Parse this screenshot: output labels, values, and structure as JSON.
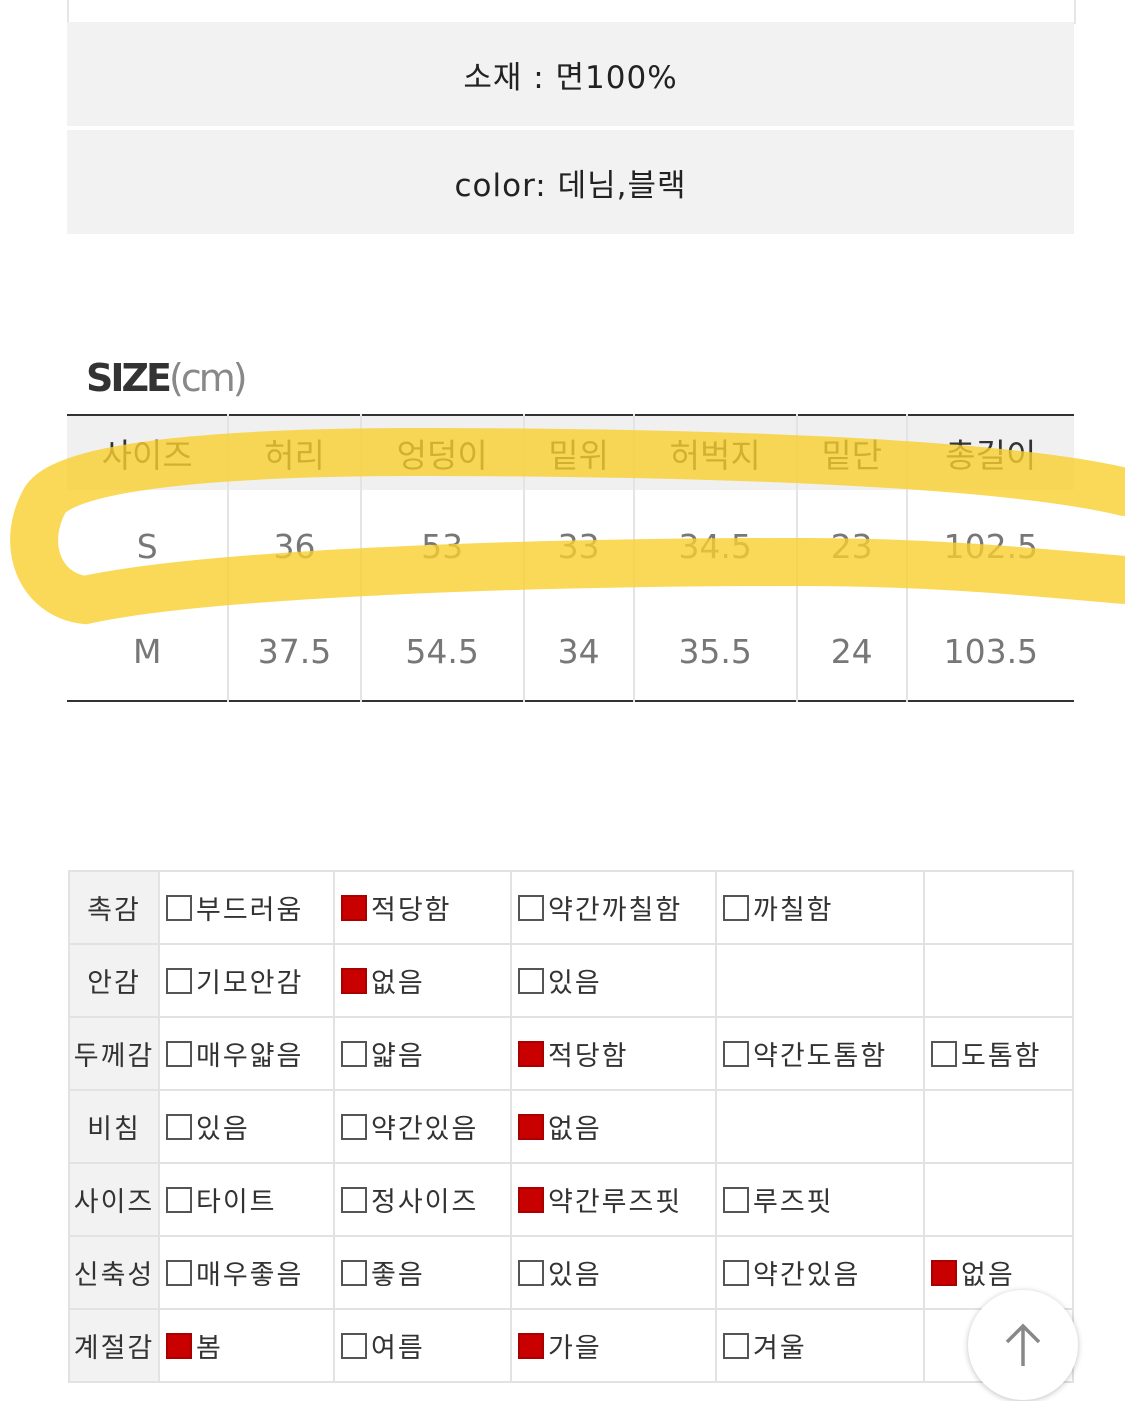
{
  "product_info": {
    "material": "소재 : 면100%",
    "color": "color: 데님,블랙"
  },
  "size_section": {
    "title_bold": "SIZE",
    "title_unit": "(cm)",
    "headers": [
      "사이즈",
      "허리",
      "엉덩이",
      "밑위",
      "허벅지",
      "밑단",
      "총길이"
    ],
    "rows": [
      [
        "S",
        "36",
        "53",
        "33",
        "34.5",
        "23",
        "102.5"
      ],
      [
        "M",
        "37.5",
        "54.5",
        "34",
        "35.5",
        "24",
        "103.5"
      ]
    ],
    "highlight_color": "#f9cf2e"
  },
  "attributes": {
    "checked_color": "#c80000",
    "rows": [
      {
        "label": "촉감",
        "options": [
          {
            "text": "부드러움",
            "checked": false
          },
          {
            "text": "적당함",
            "checked": true
          },
          {
            "text": "약간까칠함",
            "checked": false
          },
          {
            "text": "까칠함",
            "checked": false
          }
        ]
      },
      {
        "label": "안감",
        "options": [
          {
            "text": "기모안감",
            "checked": false
          },
          {
            "text": "없음",
            "checked": true
          },
          {
            "text": "있음",
            "checked": false
          }
        ]
      },
      {
        "label": "두께감",
        "options": [
          {
            "text": "매우얇음",
            "checked": false
          },
          {
            "text": "얇음",
            "checked": false
          },
          {
            "text": "적당함",
            "checked": true
          },
          {
            "text": "약간도톰함",
            "checked": false
          },
          {
            "text": "도톰함",
            "checked": false
          }
        ]
      },
      {
        "label": "비침",
        "options": [
          {
            "text": "있음",
            "checked": false
          },
          {
            "text": "약간있음",
            "checked": false
          },
          {
            "text": "없음",
            "checked": true
          }
        ]
      },
      {
        "label": "사이즈",
        "options": [
          {
            "text": "타이트",
            "checked": false
          },
          {
            "text": "정사이즈",
            "checked": false
          },
          {
            "text": "약간루즈핏",
            "checked": true
          },
          {
            "text": "루즈핏",
            "checked": false
          }
        ]
      },
      {
        "label": "신축성",
        "options": [
          {
            "text": "매우좋음",
            "checked": false
          },
          {
            "text": "좋음",
            "checked": false
          },
          {
            "text": "있음",
            "checked": false
          },
          {
            "text": "약간있음",
            "checked": false
          },
          {
            "text": "없음",
            "checked": true
          }
        ]
      },
      {
        "label": "계절감",
        "options": [
          {
            "text": "봄",
            "checked": true
          },
          {
            "text": "여름",
            "checked": false
          },
          {
            "text": "가을",
            "checked": true
          },
          {
            "text": "겨울",
            "checked": false
          }
        ]
      }
    ]
  },
  "scroll_top_icon": "arrow-up-icon"
}
